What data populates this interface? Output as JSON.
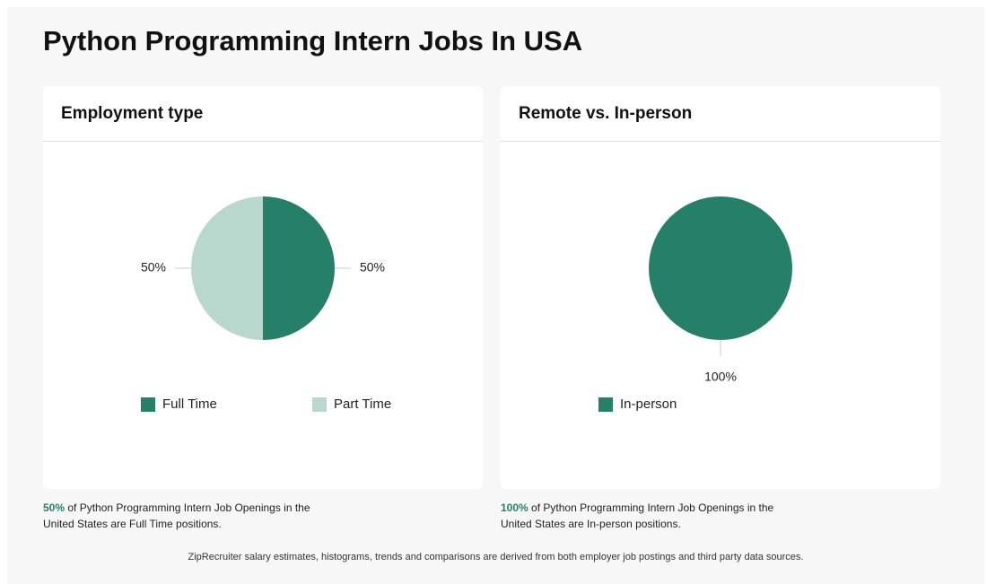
{
  "title": "Python Programming Intern Jobs In USA",
  "chart_data": [
    {
      "type": "pie",
      "title": "Employment type",
      "categories": [
        "Full Time",
        "Part Time"
      ],
      "values": [
        50,
        50
      ],
      "value_labels": [
        "50%",
        "50%"
      ],
      "colors": [
        "#267f68",
        "#b8d8ce"
      ]
    },
    {
      "type": "pie",
      "title": "Remote vs. In-person",
      "categories": [
        "In-person"
      ],
      "values": [
        100
      ],
      "value_labels": [
        "100%"
      ],
      "colors": [
        "#267f68"
      ]
    }
  ],
  "captions": [
    "of Python Programming Intern Job Openings in the United States are Full Time positions.",
    "of Python Programming Intern Job Openings in the United States are In-person positions."
  ],
  "footer": "ZipRecruiter salary estimates, histograms, trends and comparisons are derived from both employer job postings and third party data sources."
}
